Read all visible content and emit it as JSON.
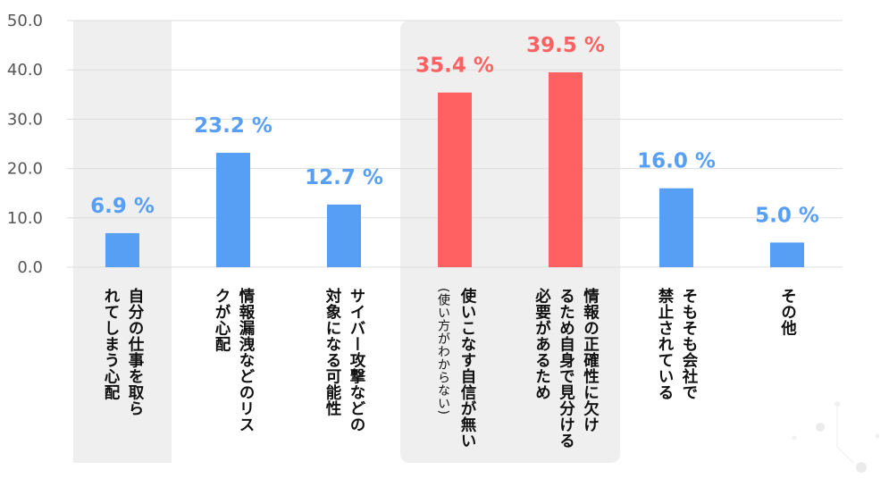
{
  "chart_data": {
    "type": "bar",
    "title": "",
    "xlabel": "",
    "ylabel": "",
    "ylim": [
      0,
      50
    ],
    "yticks": [
      "0.0",
      "10.0",
      "20.0",
      "30.0",
      "40.0",
      "50.0"
    ],
    "value_suffix": " %",
    "categories": [
      {
        "lines": [
          "自分の仕事を取ら",
          "れてしまう心配"
        ],
        "sub": ""
      },
      {
        "lines": [
          "情報漏洩などのリス",
          "クが心配"
        ],
        "sub": ""
      },
      {
        "lines": [
          "サイバー攻撃などの",
          "対象になる可能性"
        ],
        "sub": ""
      },
      {
        "lines": [
          "使いこなす自信が無い"
        ],
        "sub": "(使い方がわからない)"
      },
      {
        "lines": [
          "情報の正確性に欠け",
          "るため自身で見分ける",
          "必要があるため"
        ],
        "sub": ""
      },
      {
        "lines": [
          "そもそも会社で",
          "禁止されている"
        ],
        "sub": ""
      },
      {
        "lines": [
          "その他"
        ],
        "sub": ""
      }
    ],
    "values": [
      6.9,
      23.2,
      12.7,
      35.4,
      39.5,
      16.0,
      5.0
    ],
    "value_labels": [
      "6.9 %",
      "23.2 %",
      "12.7 %",
      "35.4 %",
      "39.5 %",
      "16.0 %",
      "5.0 %"
    ],
    "highlighted": [
      false,
      false,
      false,
      true,
      true,
      false,
      false
    ],
    "shaded_groups": [
      [
        0
      ],
      [
        3,
        4
      ]
    ],
    "colors": {
      "normal": "#579ef5",
      "highlight": "#ff6163",
      "shade": "#efefef",
      "grid": "#dddddd"
    }
  }
}
